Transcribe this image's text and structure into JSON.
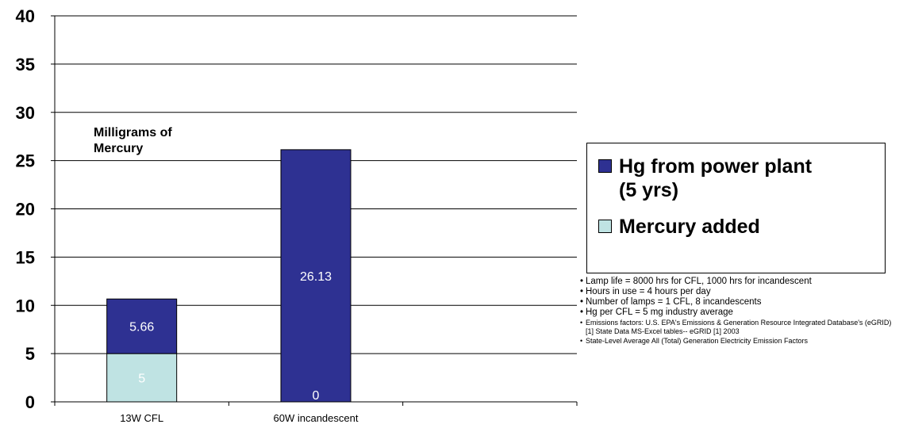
{
  "chart_data": {
    "type": "bar",
    "stacked": true,
    "categories": [
      "13W CFL",
      "60W incandescent"
    ],
    "series": [
      {
        "name": "Mercury added",
        "values": [
          5,
          0
        ],
        "color": "#bfe3e3"
      },
      {
        "name": "Hg from power plant\n(5 yrs)",
        "values": [
          5.66,
          26.13
        ],
        "color": "#2e3192"
      }
    ],
    "y_ticks": [
      "0",
      "5",
      "10",
      "15",
      "20",
      "25",
      "30",
      "35",
      "40"
    ],
    "ylim": [
      0,
      40
    ],
    "grid": true,
    "legend_position": "right",
    "annotation": "Milligrams of\nMercury"
  },
  "legend": {
    "items": [
      {
        "label": "Hg from power plant\n(5 yrs)",
        "color": "#2e3192"
      },
      {
        "label": "Mercury added",
        "color": "#bfe3e3"
      }
    ]
  },
  "notes": [
    {
      "text": "Lamp life = 8000 hrs for CFL, 1000 hrs for incandescent",
      "size": "big"
    },
    {
      "text": "Hours in use = 4 hours per day",
      "size": "big"
    },
    {
      "text": "Number of lamps = 1 CFL, 8 incandescents",
      "size": "big"
    },
    {
      "text": "Hg per CFL = 5 mg industry average",
      "size": "big"
    },
    {
      "text": "Emissions factors:  U.S. EPA's Emissions & Generation Resource Integrated Database's (eGRID) [1] State Data MS-Excel tables-- eGRID [1] 2003",
      "size": "small"
    },
    {
      "text": "State-Level Average All (Total) Generation Electricity Emission Factors",
      "size": "small"
    }
  ]
}
